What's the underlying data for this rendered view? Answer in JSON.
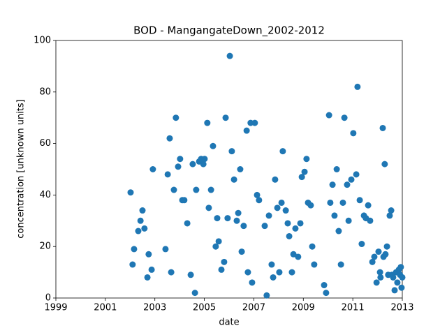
{
  "chart_data": {
    "type": "scatter",
    "title": "BOD - MangangateDown_2002-2012",
    "x_label": "date",
    "y_label": "concentration [unknown units]",
    "color": "#1f77b4",
    "xlim": [
      1999,
      2013
    ],
    "xticks": [
      1999,
      2001,
      2003,
      2005,
      2007,
      2009,
      2011,
      2013
    ],
    "ylim": [
      0,
      100
    ],
    "yticks": [
      0,
      20,
      40,
      60,
      80,
      100
    ],
    "x": [
      2002.02,
      2002.1,
      2002.16,
      2002.33,
      2002.42,
      2002.5,
      2002.58,
      2002.7,
      2002.75,
      2002.87,
      2002.92,
      2003.43,
      2003.52,
      2003.6,
      2003.66,
      2003.77,
      2003.85,
      2003.94,
      2004.02,
      2004.11,
      2004.19,
      2004.31,
      2004.45,
      2004.53,
      2004.62,
      2004.67,
      2004.79,
      2004.87,
      2004.96,
      2005.01,
      2005.12,
      2005.18,
      2005.27,
      2005.35,
      2005.46,
      2005.52,
      2005.58,
      2005.69,
      2005.8,
      2005.86,
      2005.94,
      2006.03,
      2006.11,
      2006.2,
      2006.31,
      2006.37,
      2006.45,
      2006.51,
      2006.59,
      2006.71,
      2006.76,
      2006.87,
      2006.93,
      2007.04,
      2007.13,
      2007.21,
      2007.44,
      2007.52,
      2007.61,
      2007.72,
      2007.78,
      2007.86,
      2007.95,
      2008.03,
      2008.12,
      2008.17,
      2008.29,
      2008.37,
      2008.43,
      2008.54,
      2008.6,
      2008.68,
      2008.79,
      2008.88,
      2008.94,
      2009.05,
      2009.13,
      2009.19,
      2009.3,
      2009.36,
      2009.44,
      2009.84,
      2009.92,
      2010.04,
      2010.09,
      2010.18,
      2010.26,
      2010.35,
      2010.43,
      2010.52,
      2010.6,
      2010.66,
      2010.77,
      2010.83,
      2010.94,
      2011.02,
      2011.14,
      2011.19,
      2011.28,
      2011.36,
      2011.45,
      2011.53,
      2011.62,
      2011.7,
      2011.79,
      2011.87,
      2011.96,
      2012.04,
      2012.1,
      2012.12,
      2012.21,
      2012.24,
      2012.29,
      2012.32,
      2012.38,
      2012.43,
      2012.49,
      2012.55,
      2012.58,
      2012.63,
      2012.69,
      2012.75,
      2012.8,
      2012.86,
      2012.91,
      2012.94,
      2012.97,
      2013.0
    ],
    "values": [
      41,
      13,
      19,
      26,
      30,
      34,
      27,
      8,
      17,
      11,
      50,
      19,
      48,
      62,
      10,
      42,
      70,
      51,
      54,
      38,
      38,
      29,
      9,
      52,
      2,
      42,
      53,
      54,
      52,
      54,
      68,
      35,
      42,
      59,
      20,
      31,
      22,
      11,
      14,
      70,
      31,
      94,
      57,
      46,
      30,
      33,
      50,
      18,
      28,
      65,
      10,
      68,
      6,
      68,
      40,
      38,
      28,
      1,
      32,
      13,
      8,
      46,
      35,
      10,
      37,
      57,
      34,
      29,
      24,
      10,
      17,
      27,
      16,
      29,
      47,
      49,
      54,
      37,
      36,
      20,
      13,
      5,
      2,
      71,
      37,
      44,
      32,
      50,
      26,
      13,
      37,
      70,
      44,
      30,
      46,
      64,
      48,
      82,
      38,
      21,
      32,
      31,
      36,
      30,
      14,
      16,
      6,
      18,
      10,
      8,
      66,
      16,
      52,
      17,
      20,
      9,
      32,
      34,
      9,
      8,
      3,
      10,
      6,
      11,
      9,
      12,
      4,
      8
    ]
  }
}
